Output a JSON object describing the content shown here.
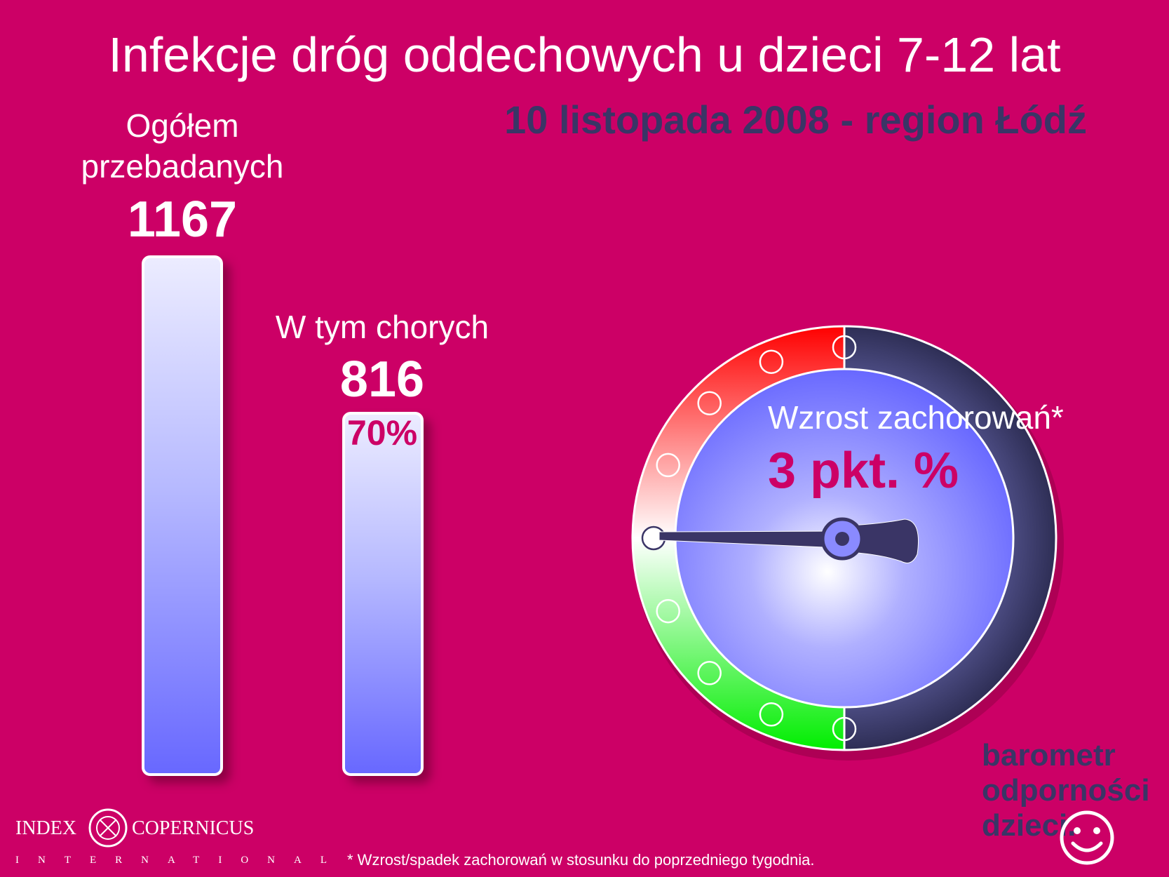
{
  "header": {
    "title": "Infekcje dróg oddechowych u dzieci 7-12 lat",
    "subtitle": "10 listopada 2008 - region Łódź"
  },
  "chart_data": {
    "type": "bar",
    "categories": [
      "Ogółem przebadanych",
      "W tym chorych"
    ],
    "category_lines": [
      [
        "Ogółem",
        "przebadanych"
      ],
      [
        "W tym chorych"
      ]
    ],
    "values": [
      1167,
      816
    ],
    "value_labels": [
      "1167",
      "816"
    ],
    "percent_label": "70%"
  },
  "gauge": {
    "label": "Wzrost zachorowań*",
    "value_label": "3 pkt. %",
    "reading": 3,
    "zones": {
      "increase": "#ff0000",
      "decrease": "#00ee00",
      "dial": "#6b6bff",
      "rim": "#3a3566"
    }
  },
  "brand": {
    "lines": [
      "barometr",
      "odporności",
      "dzieci."
    ]
  },
  "logo": {
    "left": "INDEX",
    "right": "COPERNICUS",
    "sub": "INTERNATIONAL"
  },
  "footnote": "* Wzrost/spadek zachorowań w stosunku do poprzedniego tygodnia.",
  "colors": {
    "background": "#cc0066",
    "accent": "#cc0066",
    "dark": "#3a3566"
  }
}
